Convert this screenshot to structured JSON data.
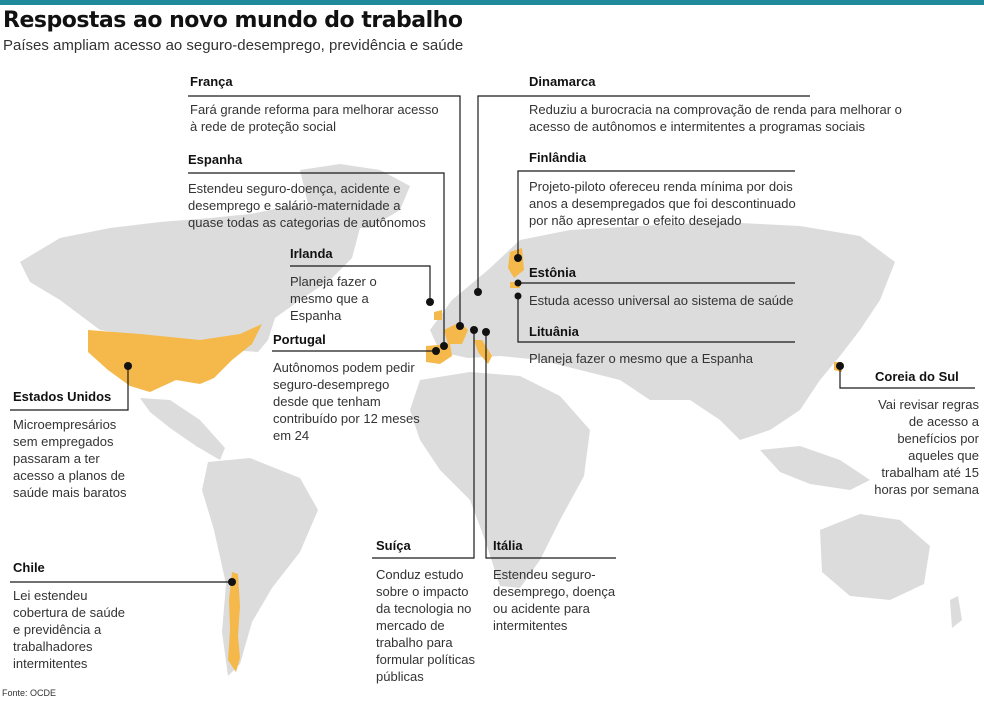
{
  "header": {
    "title": "Respostas ao novo mundo do trabalho",
    "subtitle": "Países ampliam acesso ao seguro-desemprego, previdência e saúde"
  },
  "colors": {
    "highlight": "#f5b84a",
    "land": "#dcdcdc",
    "ink": "#1a1a1a",
    "accent_bar": "#1f8a9c"
  },
  "countries": {
    "franca": {
      "name": "França",
      "text": "Fará grande reforma para melhorar acesso à rede de proteção social"
    },
    "dinamarca": {
      "name": "Dinamarca",
      "text": "Reduziu a burocracia na comprovação de renda para melhorar o acesso de autônomos e intermitentes a programas sociais"
    },
    "espanha": {
      "name": "Espanha",
      "text": "Estendeu seguro-doença, acidente e desemprego e salário-maternidade a quase todas as categorias de autônomos"
    },
    "finlandia": {
      "name": "Finlândia",
      "text": "Projeto-piloto ofereceu renda mínima por dois anos a desempregados que foi descontinuado por não apresentar o efeito desejado"
    },
    "irlanda": {
      "name": "Irlanda",
      "text": "Planeja fazer o mesmo que a Espanha"
    },
    "estonia": {
      "name": "Estônia",
      "text": "Estuda acesso universal ao sistema de saúde"
    },
    "portugal": {
      "name": "Portugal",
      "text": "Autônomos podem pedir seguro-desemprego desde que tenham contribuído por 12 meses em 24"
    },
    "lituania": {
      "name": "Lituânia",
      "text": "Planeja fazer o mesmo que a Espanha"
    },
    "estados_unidos": {
      "name": "Estados Unidos",
      "text": "Microempresários sem empregados passaram a ter acesso a planos de saúde mais baratos"
    },
    "coreia_do_sul": {
      "name": "Coreia do Sul",
      "text": "Vai revisar regras de acesso a benefícios por aqueles que trabalham até 15 horas por semana"
    },
    "chile": {
      "name": "Chile",
      "text": "Lei estendeu cobertura de saúde e previdência a trabalhadores intermitentes"
    },
    "suica": {
      "name": "Suíça",
      "text": "Conduz estudo sobre o impacto da tecnologia no mercado de trabalho para formular políticas públicas"
    },
    "italia": {
      "name": "Itália",
      "text": "Estendeu seguro-desemprego, doença ou acidente para intermitentes"
    }
  },
  "footer": {
    "source": "Fonte: OCDE"
  }
}
